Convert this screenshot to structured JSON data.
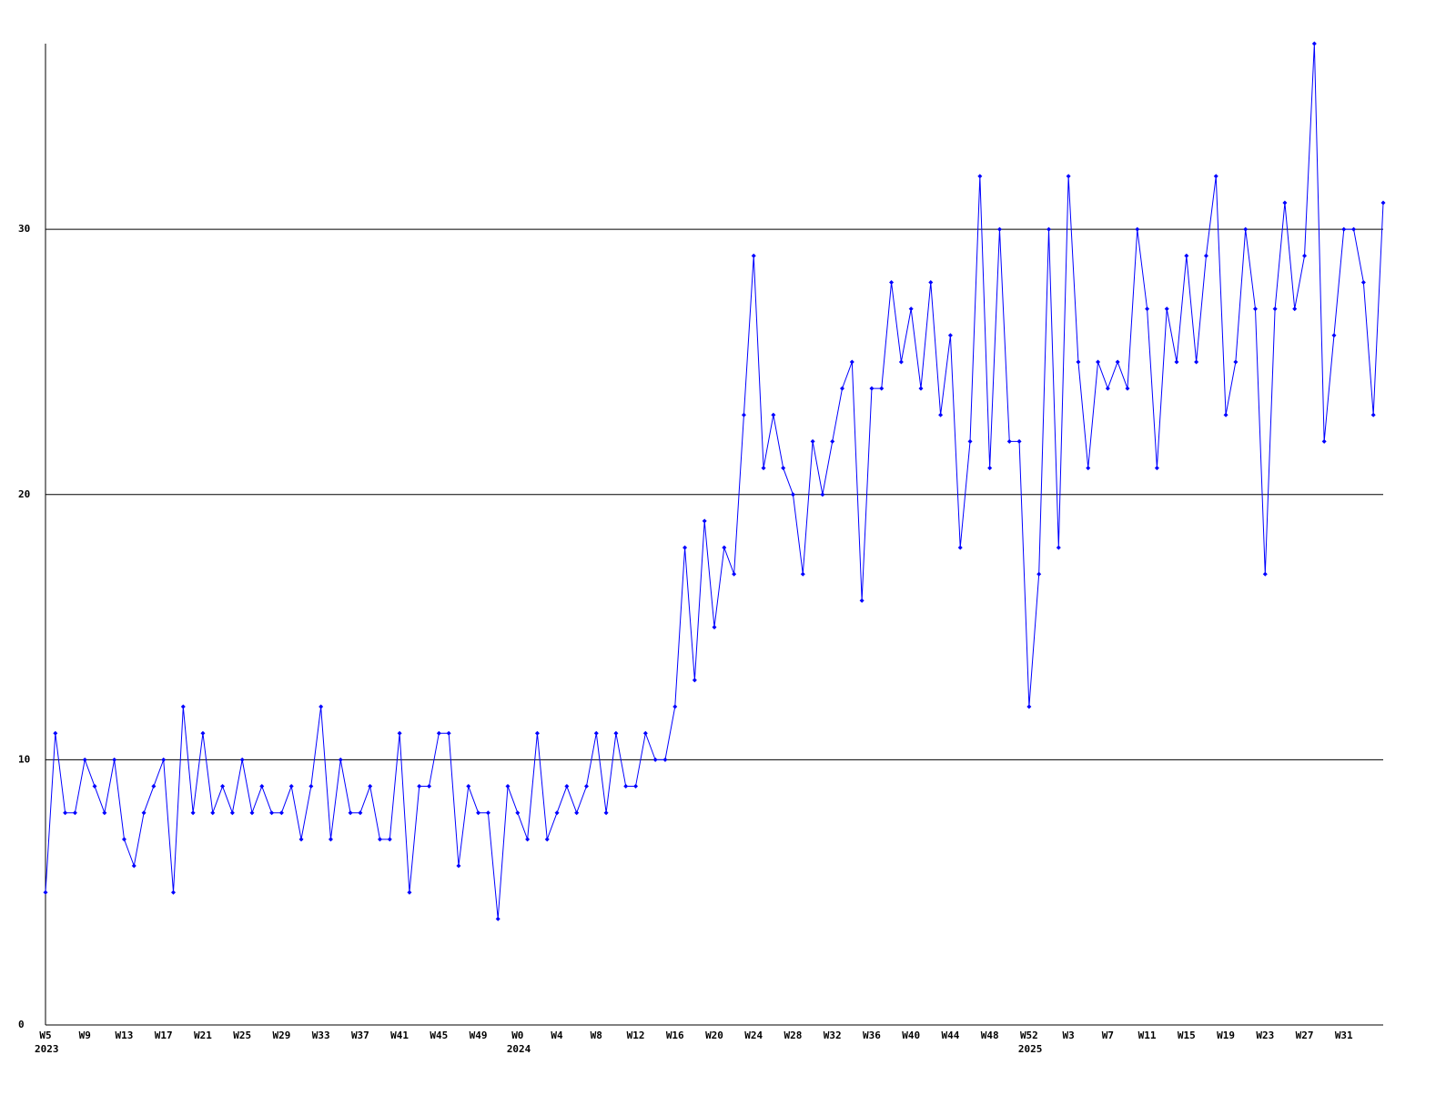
{
  "chart_data": {
    "type": "line",
    "categories": [
      "W5",
      null,
      null,
      null,
      "W9",
      null,
      null,
      null,
      "W13",
      null,
      null,
      null,
      "W17",
      null,
      null,
      null,
      "W21",
      null,
      null,
      null,
      "W25",
      null,
      null,
      null,
      "W29",
      null,
      null,
      null,
      "W33",
      null,
      null,
      null,
      "W37",
      null,
      null,
      null,
      "W41",
      null,
      null,
      null,
      "W45",
      null,
      null,
      null,
      "W49",
      null,
      null,
      null,
      "W0",
      null,
      null,
      null,
      "W4",
      null,
      null,
      null,
      "W8",
      null,
      null,
      null,
      "W12",
      null,
      null,
      null,
      "W16",
      null,
      null,
      null,
      "W20",
      null,
      null,
      null,
      "W24",
      null,
      null,
      null,
      "W28",
      null,
      null,
      null,
      "W32",
      null,
      null,
      null,
      "W36",
      null,
      null,
      null,
      "W40",
      null,
      null,
      null,
      "W44",
      null,
      null,
      null,
      "W48",
      null,
      null,
      null,
      "W52",
      null,
      null,
      null,
      "W3",
      null,
      null,
      null,
      "W7",
      null,
      null,
      null,
      "W11",
      null,
      null,
      null,
      "W15",
      null,
      null,
      null,
      "W19",
      null,
      null,
      null,
      "W23",
      null,
      null,
      null,
      "W27",
      null,
      null,
      null,
      "W31",
      null,
      null,
      null,
      null
    ],
    "years": [
      "2023",
      null,
      null,
      null,
      null,
      null,
      null,
      null,
      null,
      null,
      null,
      null,
      null,
      null,
      null,
      null,
      null,
      null,
      null,
      null,
      null,
      null,
      null,
      null,
      null,
      null,
      null,
      null,
      null,
      null,
      null,
      null,
      null,
      null,
      null,
      null,
      null,
      null,
      null,
      null,
      null,
      null,
      null,
      null,
      null,
      null,
      null,
      null,
      "2024",
      null,
      null,
      null,
      null,
      null,
      null,
      null,
      null,
      null,
      null,
      null,
      null,
      null,
      null,
      null,
      null,
      null,
      null,
      null,
      null,
      null,
      null,
      null,
      null,
      null,
      null,
      null,
      null,
      null,
      null,
      null,
      null,
      null,
      null,
      null,
      null,
      null,
      null,
      null,
      null,
      null,
      null,
      null,
      null,
      null,
      null,
      null,
      null,
      null,
      null,
      null,
      "2025",
      null,
      null,
      null,
      null,
      null,
      null,
      null,
      null,
      null,
      null,
      null,
      null,
      null,
      null,
      null,
      null,
      null,
      null,
      null,
      null,
      null,
      null,
      null,
      null,
      null,
      null,
      null,
      null,
      null,
      null,
      null,
      null,
      null,
      null,
      null,
      null
    ],
    "values": [
      5,
      11,
      8,
      8,
      10,
      9,
      8,
      10,
      7,
      6,
      8,
      9,
      10,
      5,
      12,
      8,
      11,
      8,
      9,
      8,
      10,
      8,
      9,
      8,
      8,
      9,
      7,
      9,
      12,
      7,
      10,
      8,
      8,
      9,
      7,
      7,
      11,
      5,
      9,
      9,
      11,
      11,
      6,
      9,
      8,
      8,
      4,
      9,
      8,
      7,
      11,
      7,
      8,
      9,
      8,
      9,
      11,
      8,
      11,
      9,
      9,
      11,
      10,
      10,
      12,
      18,
      13,
      19,
      15,
      18,
      17,
      23,
      29,
      21,
      23,
      21,
      20,
      17,
      22,
      20,
      22,
      24,
      25,
      16,
      24,
      24,
      28,
      25,
      27,
      24,
      28,
      23,
      26,
      18,
      22,
      32,
      21,
      30,
      22,
      22,
      12,
      17,
      30,
      18,
      32,
      25,
      21,
      25,
      24,
      25,
      24,
      30,
      27,
      21,
      27,
      25,
      29,
      25,
      29,
      32,
      23,
      25,
      30,
      27,
      17,
      27,
      31,
      27,
      29,
      37,
      22,
      26,
      30,
      30,
      28,
      23,
      31
    ],
    "color": "#0000ff",
    "ylim": [
      0,
      37
    ],
    "yticks": [
      0,
      10,
      20,
      30
    ],
    "grid": true
  }
}
